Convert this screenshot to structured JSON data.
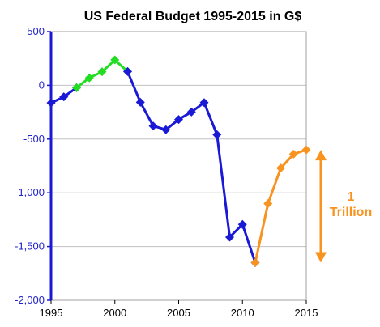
{
  "chart_data": {
    "type": "line",
    "title": "US Federal Budget 1995-2015 in G$",
    "xlabel": "",
    "ylabel": "",
    "xlim": [
      1995,
      2015
    ],
    "ylim": [
      -2000,
      500
    ],
    "x_ticks": [
      1995,
      2000,
      2005,
      2010,
      2015
    ],
    "y_ticks": [
      500,
      0,
      -500,
      -1000,
      -1500,
      -2000
    ],
    "x_tick_labels": [
      "1995",
      "2000",
      "2005",
      "2010",
      "2015"
    ],
    "y_tick_labels": [
      "500",
      "0",
      "-500",
      "-1,000",
      "-1,500",
      "-2,000"
    ],
    "grid": "horizontal",
    "series": [
      {
        "color": "#1a1ad6",
        "x": [
          1995,
          1996,
          1997
        ],
        "y": [
          -164,
          -107,
          -22
        ]
      },
      {
        "color": "#22dd22",
        "x": [
          1997,
          1998,
          1999,
          2000,
          2001
        ],
        "y": [
          -22,
          69,
          126,
          236,
          128
        ]
      },
      {
        "color": "#1a1ad6",
        "x": [
          2001,
          2002,
          2003,
          2004,
          2005,
          2006,
          2007,
          2008,
          2009,
          2010,
          2011
        ],
        "y": [
          128,
          -158,
          -378,
          -413,
          -318,
          -248,
          -161,
          -459,
          -1413,
          -1294,
          -1650
        ]
      },
      {
        "color": "#f7931e",
        "x": [
          2011,
          2012,
          2013,
          2014,
          2015
        ],
        "y": [
          -1650,
          -1100,
          -770,
          -640,
          -600
        ]
      }
    ],
    "annotation": {
      "lines": [
        "1",
        "Trillion"
      ],
      "color": "#f7931e",
      "arrow_from": -600,
      "arrow_to": -1650
    },
    "colors": {
      "axis": "#1a1ad6",
      "grid": "#c0c0c0",
      "plot_border": "#a0a0a0"
    }
  }
}
